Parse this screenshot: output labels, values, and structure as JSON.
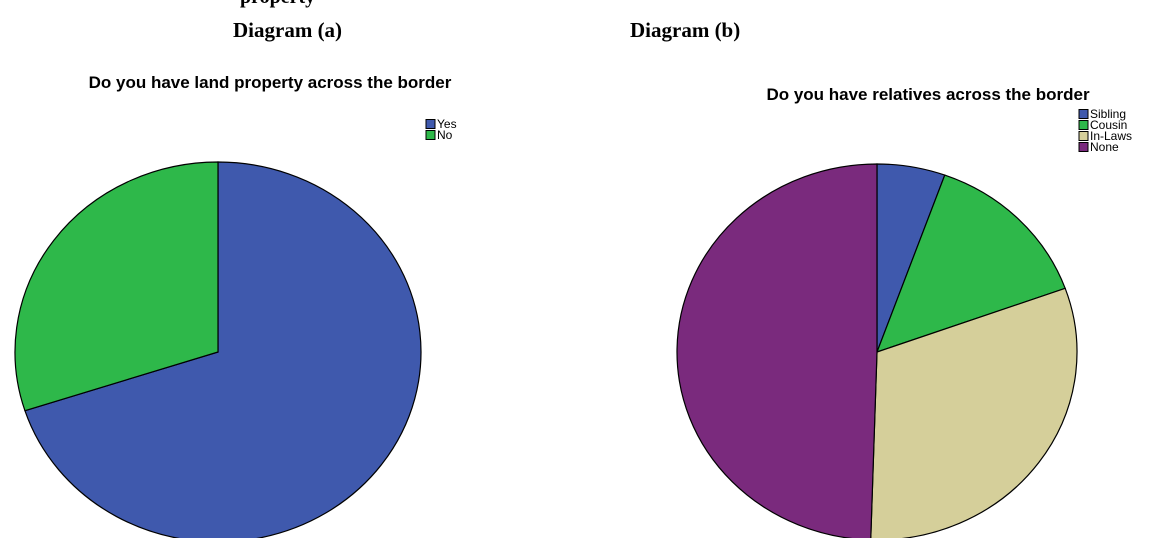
{
  "header": {
    "caption_fragment": "property",
    "diagram_a": "Diagram (a)",
    "diagram_b": "Diagram (b)"
  },
  "chart_data": [
    {
      "type": "pie",
      "title": "Do you have land property across the border",
      "categories": [
        "Yes",
        "No"
      ],
      "values": [
        70,
        30
      ],
      "colors": [
        "#3f59ad",
        "#2eb84a"
      ],
      "legend": "top-right"
    },
    {
      "type": "pie",
      "title": "Do you have relatives across the border",
      "categories": [
        "Sibling",
        "Cousin",
        "In-Laws",
        "None"
      ],
      "values": [
        5.5,
        14,
        31,
        49.5
      ],
      "colors": [
        "#3f59ad",
        "#2eb84a",
        "#d5cf9a",
        "#7a2a7d"
      ],
      "legend": "top-right"
    }
  ]
}
